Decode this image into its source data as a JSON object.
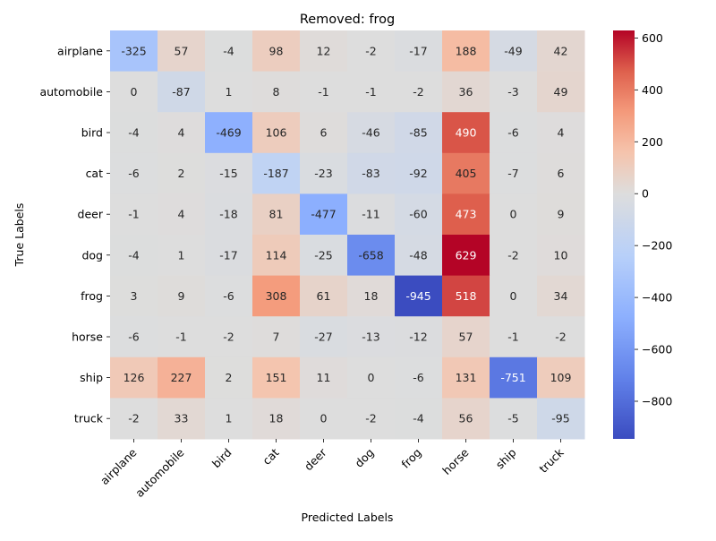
{
  "chart_data": {
    "type": "heatmap",
    "title": "Removed: frog",
    "xlabel": "Predicted Labels",
    "ylabel": "True Labels",
    "x_categories": [
      "airplane",
      "automobile",
      "bird",
      "cat",
      "deer",
      "dog",
      "frog",
      "horse",
      "ship",
      "truck"
    ],
    "y_categories": [
      "airplane",
      "automobile",
      "bird",
      "cat",
      "deer",
      "dog",
      "frog",
      "horse",
      "ship",
      "truck"
    ],
    "values": [
      [
        -325,
        57,
        -4,
        98,
        12,
        -2,
        -17,
        188,
        -49,
        42
      ],
      [
        0,
        -87,
        1,
        8,
        -1,
        -1,
        -2,
        36,
        -3,
        49
      ],
      [
        -4,
        4,
        -469,
        106,
        6,
        -46,
        -85,
        490,
        -6,
        4
      ],
      [
        -6,
        2,
        -15,
        -187,
        -23,
        -83,
        -92,
        405,
        -7,
        6
      ],
      [
        -1,
        4,
        -18,
        81,
        -477,
        -11,
        -60,
        473,
        0,
        9
      ],
      [
        -4,
        1,
        -17,
        114,
        -25,
        -658,
        -48,
        629,
        -2,
        10
      ],
      [
        3,
        9,
        -6,
        308,
        61,
        18,
        -945,
        518,
        0,
        34
      ],
      [
        -6,
        -1,
        -2,
        7,
        -27,
        -13,
        -12,
        57,
        -1,
        -2
      ],
      [
        126,
        227,
        2,
        151,
        11,
        0,
        -6,
        131,
        -751,
        109
      ],
      [
        -2,
        33,
        1,
        18,
        0,
        -2,
        -4,
        56,
        -5,
        -95
      ]
    ],
    "colormap": "coolwarm",
    "color_range": [
      -945,
      629
    ],
    "colorbar_ticks": [
      -800,
      -600,
      -400,
      -200,
      0,
      200,
      400,
      600
    ],
    "colorbar_tick_labels": [
      "−800",
      "−600",
      "−400",
      "−200",
      "0",
      "200",
      "400",
      "600"
    ]
  }
}
